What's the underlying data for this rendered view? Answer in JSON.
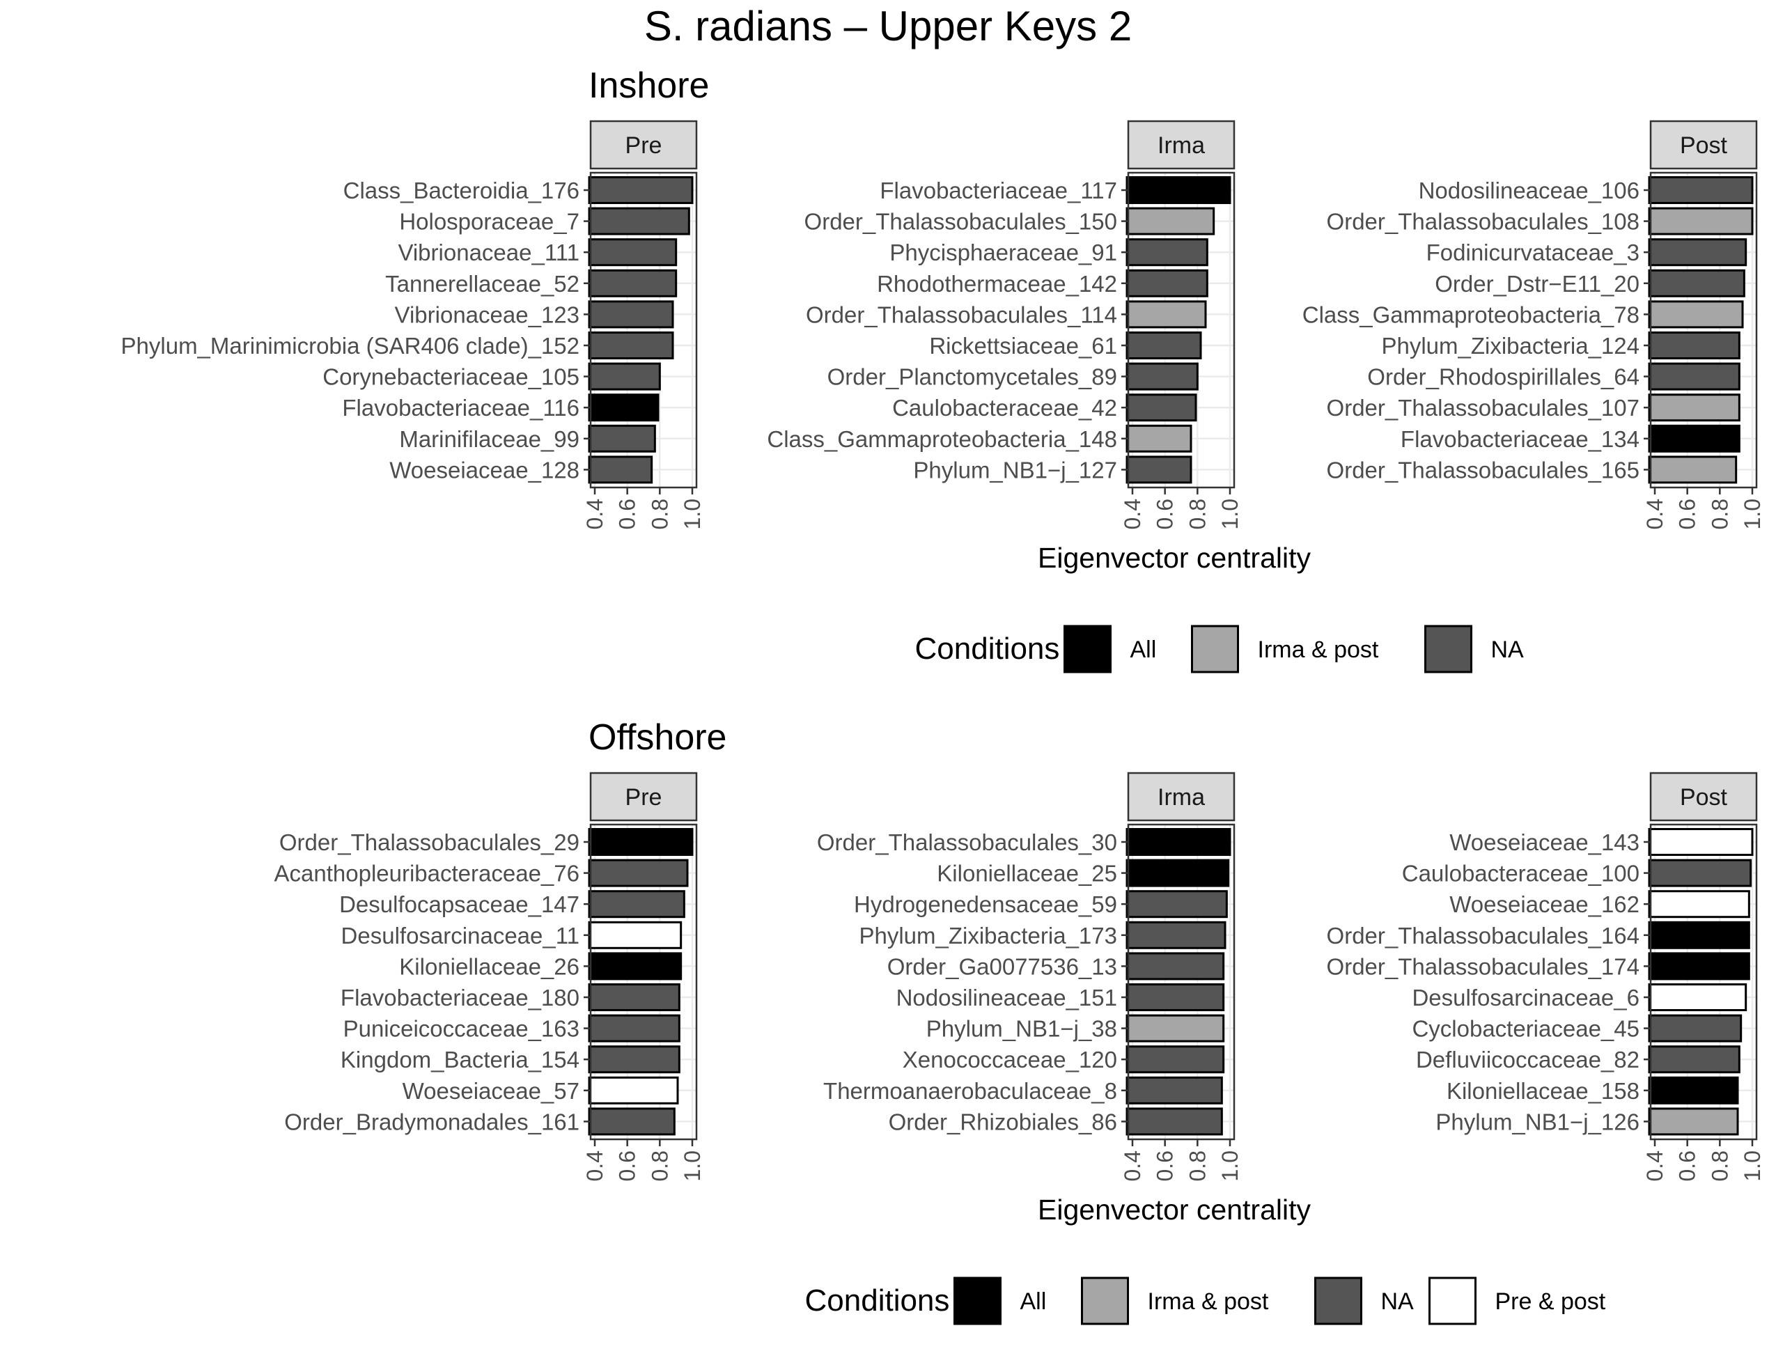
{
  "title": "S. radians – Upper Keys 2",
  "x_axis_label": "Eigenvector centrality",
  "legend_title": "Conditions",
  "colors": {
    "All": "#000000",
    "Irma & post": "#a6a6a6",
    "NA": "#555555",
    "Pre & post": "#ffffff",
    "strip_fill": "#d9d9d9",
    "grid": "#ebebeb",
    "axis": "#333333"
  },
  "chart_data": [
    {
      "type": "bar",
      "orientation": "horizontal",
      "site": "Inshore",
      "xlim": [
        0.4,
        1.0
      ],
      "ticks": [
        "0.4",
        "0.6",
        "0.8",
        "1.0"
      ],
      "legend": [
        "All",
        "Irma & post",
        "NA"
      ],
      "panels": [
        {
          "strip": "Pre",
          "categories": [
            "Class_Bacteroidia_176",
            "Holosporaceae_7",
            "Vibrionaceae_111",
            "Tannerellaceae_52",
            "Vibrionaceae_123",
            "Phylum_Marinimicrobia (SAR406 clade)_152",
            "Corynebacteriaceae_105",
            "Flavobacteriaceae_116",
            "Marinifilaceae_99",
            "Woeseiaceae_128"
          ],
          "values": [
            1.0,
            0.98,
            0.9,
            0.9,
            0.88,
            0.88,
            0.8,
            0.79,
            0.77,
            0.75
          ],
          "conditions": [
            "NA",
            "NA",
            "NA",
            "NA",
            "NA",
            "NA",
            "NA",
            "All",
            "NA",
            "NA"
          ]
        },
        {
          "strip": "Irma",
          "categories": [
            "Flavobacteriaceae_117",
            "Order_Thalassobaculales_150",
            "Phycisphaeraceae_91",
            "Rhodothermaceae_142",
            "Order_Thalassobaculales_114",
            "Rickettsiaceae_61",
            "Order_Planctomycetales_89",
            "Caulobacteraceae_42",
            "Class_Gammaproteobacteria_148",
            "Phylum_NB1−j_127"
          ],
          "values": [
            1.0,
            0.9,
            0.86,
            0.86,
            0.85,
            0.82,
            0.8,
            0.79,
            0.76,
            0.76
          ],
          "conditions": [
            "All",
            "Irma & post",
            "NA",
            "NA",
            "Irma & post",
            "NA",
            "NA",
            "NA",
            "Irma & post",
            "NA"
          ]
        },
        {
          "strip": "Post",
          "categories": [
            "Nodosilineaceae_106",
            "Order_Thalassobaculales_108",
            "Fodinicurvataceae_3",
            "Order_Dstr−E11_20",
            "Class_Gammaproteobacteria_78",
            "Phylum_Zixibacteria_124",
            "Order_Rhodospirillales_64",
            "Order_Thalassobaculales_107",
            "Flavobacteriaceae_134",
            "Order_Thalassobaculales_165"
          ],
          "values": [
            1.0,
            1.0,
            0.96,
            0.95,
            0.94,
            0.92,
            0.92,
            0.92,
            0.92,
            0.9
          ],
          "conditions": [
            "NA",
            "Irma & post",
            "NA",
            "NA",
            "Irma & post",
            "NA",
            "NA",
            "Irma & post",
            "All",
            "Irma & post"
          ]
        }
      ]
    },
    {
      "type": "bar",
      "orientation": "horizontal",
      "site": "Offshore",
      "xlim": [
        0.4,
        1.0
      ],
      "ticks": [
        "0.4",
        "0.6",
        "0.8",
        "1.0"
      ],
      "legend": [
        "All",
        "Irma & post",
        "NA",
        "Pre & post"
      ],
      "panels": [
        {
          "strip": "Pre",
          "categories": [
            "Order_Thalassobaculales_29",
            "Acanthopleuribacteraceae_76",
            "Desulfocapsaceae_147",
            "Desulfosarcinaceae_11",
            "Kiloniellaceae_26",
            "Flavobacteriaceae_180",
            "Puniceicoccaceae_163",
            "Kingdom_Bacteria_154",
            "Woeseiaceae_57",
            "Order_Bradymonadales_161"
          ],
          "values": [
            1.0,
            0.97,
            0.95,
            0.93,
            0.93,
            0.92,
            0.92,
            0.92,
            0.91,
            0.89
          ],
          "conditions": [
            "All",
            "NA",
            "NA",
            "Pre & post",
            "All",
            "NA",
            "NA",
            "NA",
            "Pre & post",
            "NA"
          ]
        },
        {
          "strip": "Irma",
          "categories": [
            "Order_Thalassobaculales_30",
            "Kiloniellaceae_25",
            "Hydrogenedensaceae_59",
            "Phylum_Zixibacteria_173",
            "Order_Ga0077536_13",
            "Nodosilineaceae_151",
            "Phylum_NB1−j_38",
            "Xenococcaceae_120",
            "Thermoanaerobaculaceae_8",
            "Order_Rhizobiales_86"
          ],
          "values": [
            1.0,
            0.99,
            0.98,
            0.97,
            0.96,
            0.96,
            0.96,
            0.96,
            0.95,
            0.95
          ],
          "conditions": [
            "All",
            "All",
            "NA",
            "NA",
            "NA",
            "NA",
            "Irma & post",
            "NA",
            "NA",
            "NA"
          ]
        },
        {
          "strip": "Post",
          "categories": [
            "Woeseiaceae_143",
            "Caulobacteraceae_100",
            "Woeseiaceae_162",
            "Order_Thalassobaculales_164",
            "Order_Thalassobaculales_174",
            "Desulfosarcinaceae_6",
            "Cyclobacteriaceae_45",
            "Defluviicoccaceae_82",
            "Kiloniellaceae_158",
            "Phylum_NB1−j_126"
          ],
          "values": [
            1.0,
            0.99,
            0.98,
            0.98,
            0.98,
            0.96,
            0.93,
            0.92,
            0.91,
            0.91
          ],
          "conditions": [
            "Pre & post",
            "NA",
            "Pre & post",
            "All",
            "All",
            "Pre & post",
            "NA",
            "NA",
            "All",
            "Irma & post"
          ]
        }
      ]
    }
  ]
}
